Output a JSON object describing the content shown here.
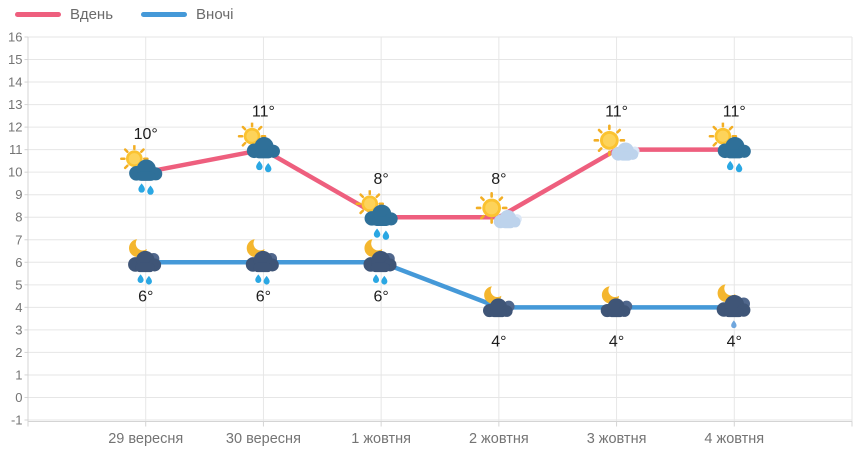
{
  "chart_data": {
    "type": "line",
    "title": "",
    "categories": [
      "29 вересня",
      "30 вересня",
      "1 жовтня",
      "2 жовтня",
      "3 жовтня",
      "4 жовтня"
    ],
    "series": [
      {
        "key": "day",
        "name": "Вдень",
        "color": "#ee5f7e",
        "values": [
          10,
          11,
          8,
          8,
          11,
          11
        ],
        "point_labels": [
          "10°",
          "11°",
          "8°",
          "8°",
          "11°",
          "11°"
        ],
        "label_position": "above",
        "icons": [
          "sun-rain-cloud",
          "sun-rain-cloud",
          "sun-rain-cloud",
          "sun-light-cloud",
          "sun-light-cloud",
          "sun-rain-cloud"
        ]
      },
      {
        "key": "night",
        "name": "Вночі",
        "color": "#4599d8",
        "values": [
          6,
          6,
          6,
          4,
          4,
          4
        ],
        "point_labels": [
          "6°",
          "6°",
          "6°",
          "4°",
          "4°",
          "4°"
        ],
        "label_position": "below",
        "icons": [
          "moon-rain-cloud",
          "moon-rain-cloud",
          "moon-rain-cloud",
          "moon-cloud",
          "moon-cloud",
          "moon-drizzle-cloud"
        ]
      }
    ],
    "xlabel": "",
    "ylabel": "",
    "ylim": [
      -1,
      16
    ],
    "y_ticks": [
      "16",
      "15",
      "14",
      "13",
      "12",
      "11",
      "10",
      "9",
      "8",
      "7",
      "6",
      "5",
      "4",
      "3",
      "2",
      "1",
      "0",
      "-1"
    ],
    "grid": true,
    "legend_position": "top-left"
  },
  "colors": {
    "grid": "#e6e6e6",
    "axis_line": "#d4d4d4",
    "axis_text": "#747474",
    "point_label_text": "#1d1d1d",
    "background": "#ffffff",
    "day_line": "#ee5f7e",
    "night_line": "#4599d8"
  }
}
